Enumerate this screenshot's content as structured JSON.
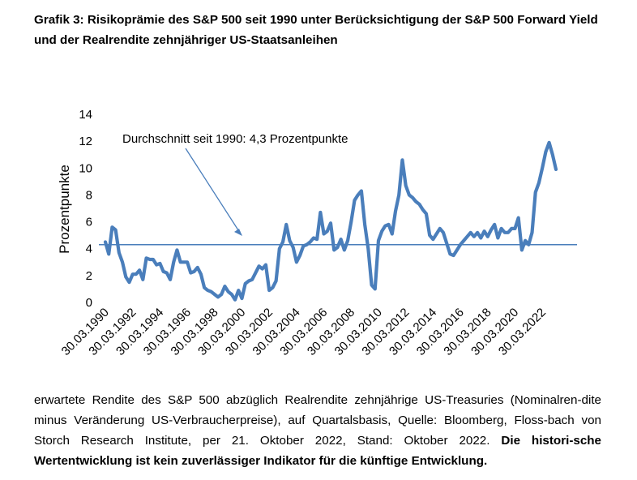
{
  "title": "Grafik 3: Risikoprämie des S&P 500 seit 1990 unter Berücksichtigung der S&P 500 Forward Yield und der Realrendite zehnjähriger US-Staatsanleihen",
  "caption": {
    "text": "erwartete Rendite des S&P 500 abzüglich Realrendite zehnjährige US-Treasuries (Nominalren-dite minus Veränderung US-Verbraucherpreise), auf Quartalsbasis, Quelle: Bloomberg, Floss-bach von Storch Research Institute, per 21. Oktober 2022, Stand: Oktober 2022.",
    "bold_text": "Die histori-sche Wertentwicklung ist kein zuverlässiger Indikator für die künftige Entwicklung."
  },
  "chart_data": {
    "type": "line",
    "title": "",
    "xlabel": "",
    "ylabel": "Prozentpunkte",
    "ylim": [
      0,
      14
    ],
    "yticks": [
      0,
      2,
      4,
      6,
      8,
      10,
      12,
      14
    ],
    "xtick_labels": [
      "30.03.1990",
      "30.03.1992",
      "30.03.1994",
      "30.03.1996",
      "30.03.1998",
      "30.03.2000",
      "30.03.2002",
      "30.03.2004",
      "30.03.2006",
      "30.03.2008",
      "30.03.2010",
      "30.03.2012",
      "30.03.2014",
      "30.03.2016",
      "30.03.2018",
      "30.03.2020",
      "30.03.2022"
    ],
    "grid": false,
    "colors": {
      "series": "#4a7ebb",
      "average": "#4a7ebb",
      "annotation_arrow": "#4a7ebb"
    },
    "average": {
      "value": 4.3,
      "label": "Durchschnitt seit 1990: 4,3 Prozentpunkte"
    },
    "series": [
      {
        "x_start": "1990-03-30",
        "frequency": "quarterly",
        "values": [
          4.5,
          3.6,
          5.6,
          5.4,
          3.7,
          3.0,
          1.9,
          1.5,
          2.1,
          2.1,
          2.4,
          1.7,
          3.3,
          3.2,
          3.2,
          2.8,
          2.9,
          2.3,
          2.2,
          1.7,
          3.0,
          3.9,
          3.0,
          3.0,
          3.0,
          2.2,
          2.3,
          2.6,
          2.1,
          1.1,
          0.9,
          0.8,
          0.6,
          0.4,
          0.6,
          1.2,
          0.8,
          0.6,
          0.2,
          0.9,
          0.3,
          1.4,
          1.6,
          1.7,
          2.2,
          2.7,
          2.5,
          2.8,
          0.9,
          1.1,
          1.6,
          4.0,
          4.5,
          5.8,
          4.6,
          4.1,
          3.0,
          3.5,
          4.2,
          4.3,
          4.5,
          4.8,
          4.7,
          6.7,
          5.1,
          5.3,
          5.9,
          3.9,
          4.1,
          4.7,
          3.9,
          4.6,
          6.0,
          7.6,
          8.0,
          8.3,
          5.8,
          4.0,
          1.3,
          1.0,
          4.6,
          5.3,
          5.7,
          5.8,
          5.1,
          6.8,
          8.0,
          10.6,
          8.7,
          8.0,
          7.8,
          7.5,
          7.3,
          6.9,
          6.6,
          5.0,
          4.7,
          5.1,
          5.5,
          5.2,
          4.4,
          3.6,
          3.5,
          3.9,
          4.3,
          4.6,
          4.9,
          5.2,
          4.9,
          5.2,
          4.8,
          5.3,
          4.9,
          5.4,
          5.8,
          4.8,
          5.5,
          5.2,
          5.2,
          5.5,
          5.5,
          6.3,
          3.9,
          4.6,
          4.3,
          5.2,
          8.2,
          8.9,
          10.0,
          11.2,
          11.9,
          11.0,
          9.9
        ]
      }
    ]
  }
}
